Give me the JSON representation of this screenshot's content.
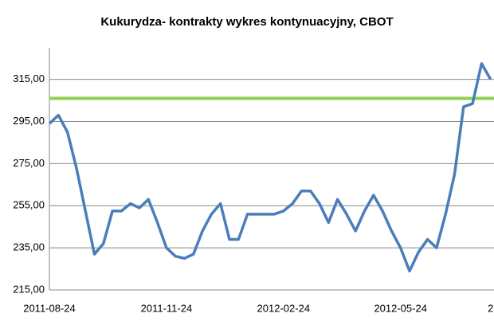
{
  "chart_data": {
    "type": "line",
    "title": "Kukurydza- kontrakty wykres kontynuacyjny, CBOT",
    "categories": [
      "2011-08-24",
      null,
      null,
      null,
      null,
      null,
      null,
      null,
      null,
      null,
      null,
      null,
      null,
      "2011-11-24",
      null,
      null,
      null,
      null,
      null,
      null,
      null,
      null,
      null,
      null,
      null,
      null,
      "2012-02-24",
      null,
      null,
      null,
      null,
      null,
      null,
      null,
      null,
      null,
      null,
      null,
      null,
      "2012-05-24",
      null,
      null,
      null,
      null,
      null,
      null,
      null,
      null,
      null,
      "2"
    ],
    "series": [
      {
        "name": "Kukurydza",
        "color": "#4a7ebb",
        "values": [
          294,
          298,
          290,
          273,
          252.5,
          232,
          237,
          252.5,
          252.5,
          256,
          254,
          258,
          247,
          235,
          231,
          230,
          232,
          243,
          251,
          256,
          239,
          239,
          251,
          251,
          251,
          251,
          252.5,
          256,
          262,
          262,
          256,
          247,
          258,
          251,
          243,
          252.5,
          260,
          252.5,
          243,
          235,
          224,
          233,
          239,
          235,
          251,
          270,
          302,
          303.5,
          322.5,
          315
        ]
      }
    ],
    "reference_line": {
      "value": 306,
      "color": "#92d050"
    },
    "ylim": [
      215,
      330
    ],
    "yticks": [
      {
        "value": 215,
        "label": "215,00"
      },
      {
        "value": 235,
        "label": "235,00"
      },
      {
        "value": 255,
        "label": "255,00"
      },
      {
        "value": 275,
        "label": "275,00"
      },
      {
        "value": 295,
        "label": "295,00"
      },
      {
        "value": 315,
        "label": "315,00"
      }
    ],
    "grid": true
  }
}
